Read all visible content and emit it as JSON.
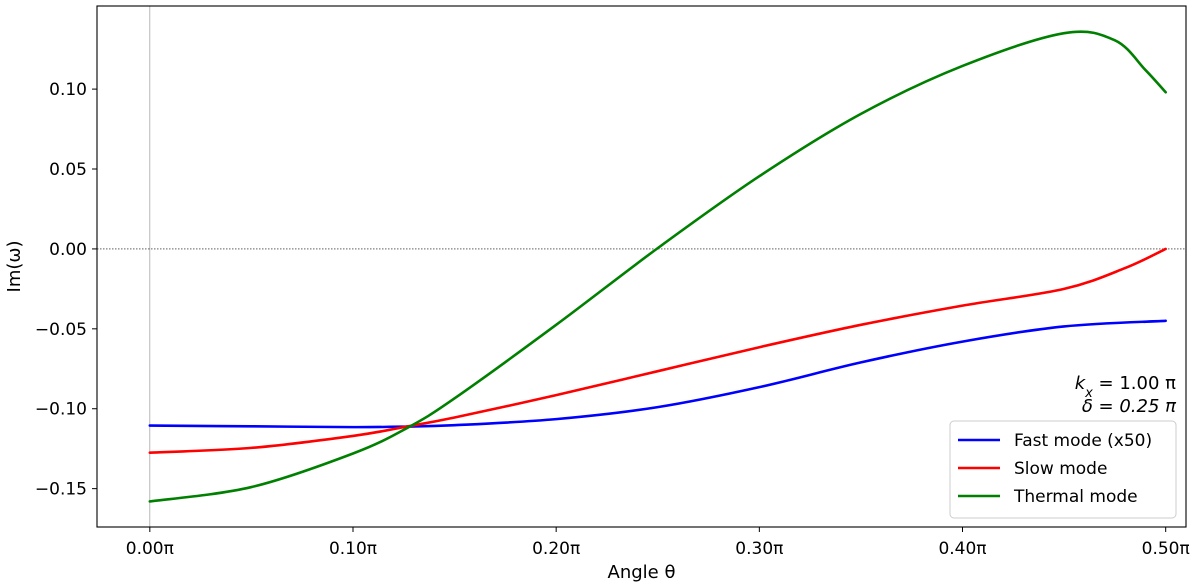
{
  "chart_data": {
    "type": "line",
    "title": "",
    "xlabel": "Angle θ",
    "ylabel": "Im(ω)",
    "xlim": [
      -0.026,
      0.51
    ],
    "ylim": [
      -0.174,
      0.152
    ],
    "x_ticks": [
      {
        "value": 0.0,
        "label": "0.00π"
      },
      {
        "value": 0.1,
        "label": "0.10π"
      },
      {
        "value": 0.2,
        "label": "0.20π"
      },
      {
        "value": 0.3,
        "label": "0.30π"
      },
      {
        "value": 0.4,
        "label": "0.40π"
      },
      {
        "value": 0.5,
        "label": "0.50π"
      }
    ],
    "y_ticks": [
      {
        "value": 0.1,
        "label": "0.10"
      },
      {
        "value": 0.05,
        "label": "0.05"
      },
      {
        "value": 0.0,
        "label": "0.00"
      },
      {
        "value": -0.05,
        "label": "−0.05"
      },
      {
        "value": -0.1,
        "label": "−0.10"
      },
      {
        "value": -0.15,
        "label": "−0.15"
      }
    ],
    "reference_lines": {
      "horizontal_y": 0.0,
      "vertical_x": 0.0
    },
    "grid": false,
    "legend_position": "lower-right",
    "annotations": [
      "k_x = 1.00 π",
      "δ  = 0.25 π"
    ],
    "annotation_display": {
      "line1_symbol": "k",
      "line1_sub": "x",
      "line1_rest": " = 1.00 π",
      "line2": "δ  = 0.25 π"
    },
    "series": [
      {
        "name": "Fast mode (x50)",
        "color": "#0000ff",
        "x": [
          0.0,
          0.05,
          0.1,
          0.125,
          0.15,
          0.2,
          0.25,
          0.3,
          0.35,
          0.4,
          0.45,
          0.5
        ],
        "y": [
          -0.1105,
          -0.111,
          -0.1115,
          -0.1112,
          -0.1103,
          -0.1065,
          -0.099,
          -0.0865,
          -0.071,
          -0.058,
          -0.0485,
          -0.045
        ]
      },
      {
        "name": "Slow mode",
        "color": "#ff0000",
        "x": [
          0.0,
          0.05,
          0.1,
          0.125,
          0.15,
          0.2,
          0.25,
          0.3,
          0.35,
          0.4,
          0.45,
          0.48,
          0.5
        ],
        "y": [
          -0.1275,
          -0.1245,
          -0.117,
          -0.1115,
          -0.1055,
          -0.0915,
          -0.0765,
          -0.0615,
          -0.0475,
          -0.0355,
          -0.025,
          -0.012,
          0.0
        ]
      },
      {
        "name": "Thermal mode",
        "color": "#008000",
        "x": [
          0.0,
          0.05,
          0.1,
          0.127,
          0.15,
          0.2,
          0.25,
          0.3,
          0.35,
          0.4,
          0.45,
          0.475,
          0.49,
          0.5
        ],
        "y": [
          -0.158,
          -0.149,
          -0.128,
          -0.1118,
          -0.0935,
          -0.0475,
          0.0005,
          0.0455,
          0.0845,
          0.1145,
          0.135,
          0.1305,
          0.112,
          0.098
        ]
      }
    ]
  }
}
